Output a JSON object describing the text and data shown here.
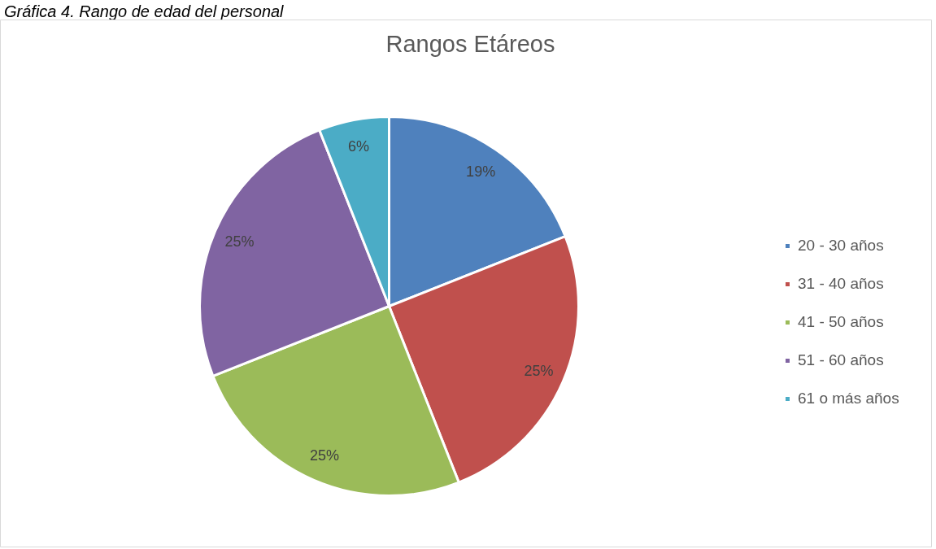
{
  "chart_data": {
    "type": "pie",
    "title": "Rangos Etáreos",
    "annotations": [
      "Gráfica 4. Rango de edad del personal"
    ],
    "categories": [
      "20 - 30 años",
      "31 - 40 años",
      "41 - 50 años",
      "51 - 60 años",
      "61 o más años"
    ],
    "values": [
      19,
      25,
      25,
      25,
      6
    ],
    "colors": [
      "#4f81bd",
      "#c0504d",
      "#9bbb59",
      "#8064a2",
      "#4bacc6"
    ],
    "value_labels": [
      "19%",
      "25%",
      "25%",
      "25%",
      "6%"
    ],
    "legend": "right"
  }
}
